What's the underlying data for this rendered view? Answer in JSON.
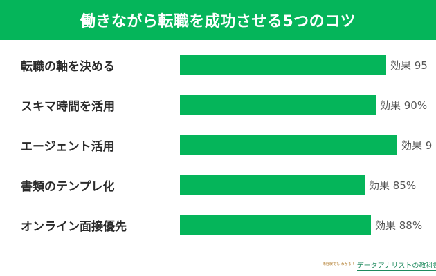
{
  "title": "働きながら転職を成功させる5つのコツ",
  "chart_data": {
    "type": "bar",
    "orientation": "horizontal",
    "categories": [
      "転職の軸を決める",
      "スキマ時間を活用",
      "エージェント活用",
      "書類のテンプレ化",
      "オンライン面接優先"
    ],
    "values": [
      95,
      90,
      9,
      85,
      88
    ],
    "value_labels": [
      "効果 95",
      "効果 90%",
      "効果 9",
      "効果 85%",
      "効果 88%"
    ],
    "bar_color": "#05b55a",
    "header_color": "#05b55a"
  },
  "footer": {
    "logo_small": "未経験でも わかる!!",
    "logo_main": "データアナリストの教科書"
  }
}
